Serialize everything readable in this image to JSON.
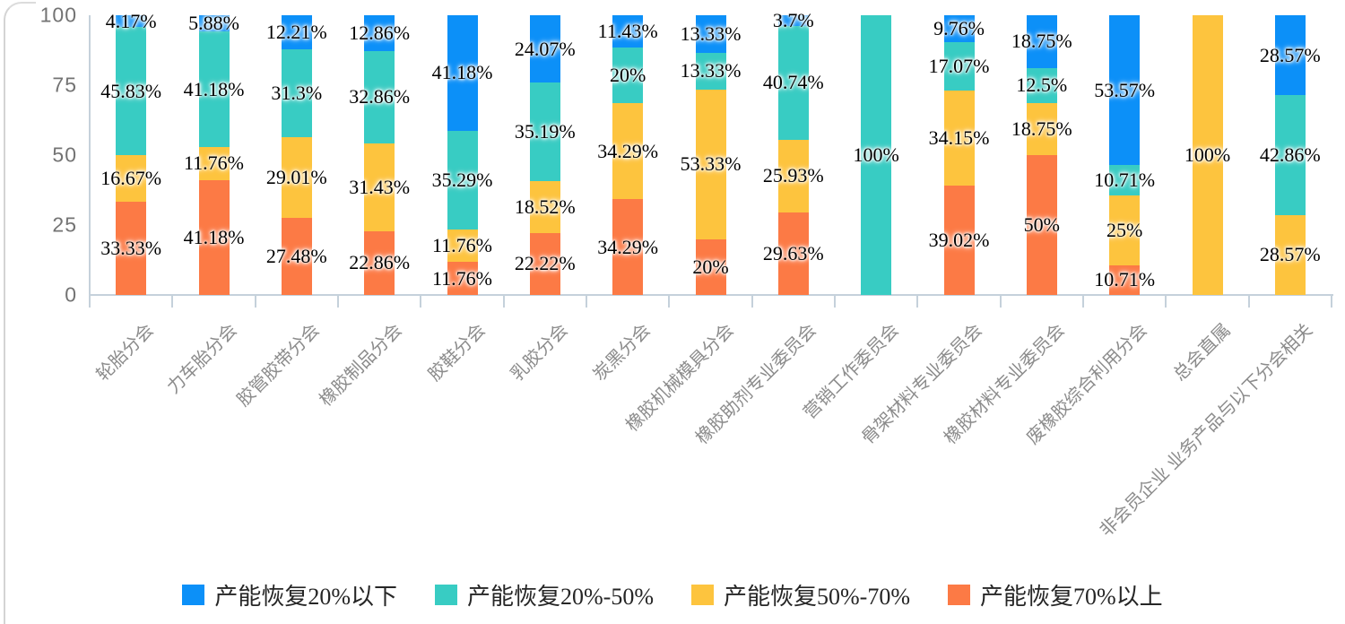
{
  "chart_data": {
    "type": "bar",
    "stacked": true,
    "percent_stacked": true,
    "unit": "%",
    "grid": false,
    "legend_position": "bottom",
    "ylim": [
      0,
      100
    ],
    "yticks": [
      100,
      75,
      50,
      25,
      0
    ],
    "categories": [
      "轮胎分会",
      "力车胎分会",
      "胶管胶带分会",
      "橡胶制品分会",
      "胶鞋分会",
      "乳胶分会",
      "炭黑分会",
      "橡胶机械模具分会",
      "橡胶助剂专业委员会",
      "营销工作委员会",
      "骨架材料专业委员会",
      "橡胶材料专业委员会",
      "废橡胶综合利用分会",
      "总会直属",
      "非会员企业 业务产品与以下分会相关"
    ],
    "series": [
      {
        "name": "产能恢复70%以上",
        "color": "#FC7A45",
        "values": [
          33.33,
          41.18,
          27.48,
          22.86,
          11.76,
          22.22,
          34.29,
          20,
          29.63,
          0,
          39.02,
          50,
          10.71,
          0,
          0
        ]
      },
      {
        "name": "产能恢复50%-70%",
        "color": "#FDC43E",
        "values": [
          16.67,
          11.76,
          29.01,
          31.43,
          11.76,
          18.52,
          34.29,
          53.33,
          25.93,
          0,
          34.15,
          18.75,
          25,
          100,
          28.57
        ]
      },
      {
        "name": "产能恢复20%-50%",
        "color": "#38CCC3",
        "values": [
          45.83,
          41.18,
          31.3,
          32.86,
          35.29,
          35.19,
          20,
          13.33,
          40.74,
          100,
          17.07,
          12.5,
          10.71,
          0,
          42.86
        ]
      },
      {
        "name": "产能恢复20%以下",
        "color": "#0C90F8",
        "values": [
          4.17,
          5.88,
          12.21,
          12.86,
          41.18,
          24.07,
          11.43,
          13.33,
          3.7,
          0,
          9.76,
          18.75,
          53.57,
          0,
          28.57
        ]
      }
    ],
    "legend": [
      {
        "label": "产能恢复20%以下",
        "color": "#0C90F8"
      },
      {
        "label": "产能恢复20%-50%",
        "color": "#38CCC3"
      },
      {
        "label": "产能恢复50%-70%",
        "color": "#FDC43E"
      },
      {
        "label": "产能恢复70%以上",
        "color": "#FC7A45"
      }
    ]
  }
}
